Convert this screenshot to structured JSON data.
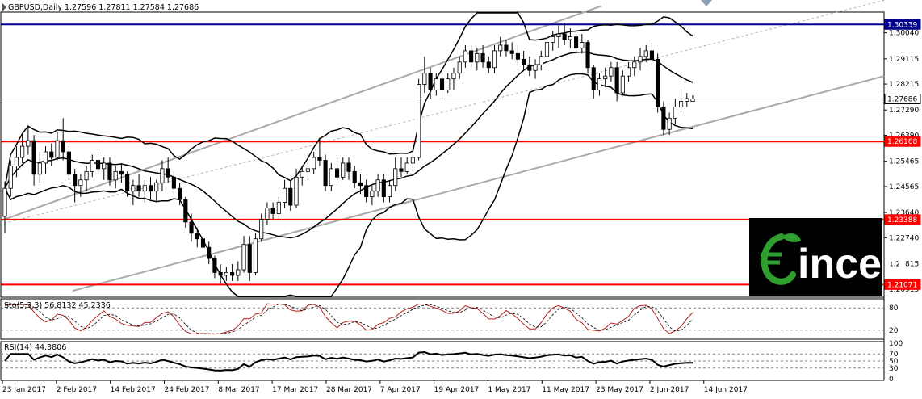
{
  "chart": {
    "symbol_header": "GBPUSD,Daily  1.27596 1.27811 1.27584 1.27686",
    "price_ticks": [
      "1.30040",
      "1.29115",
      "1.28215",
      "1.27290",
      "1.26390",
      "1.25465",
      "1.24565",
      "1.23640",
      "1.22740",
      "1.21815",
      "1.20915"
    ],
    "level_labels": [
      "1.30339",
      "1.27686",
      "1.26168",
      "1.23388",
      "1.21071"
    ],
    "date_ticks": [
      "23 Jan 2017",
      "2 Feb 2017",
      "14 Feb 2017",
      "24 Feb 2017",
      "8 Mar 2017",
      "17 Mar 2017",
      "28 Mar 2017",
      "7 Apr 2017",
      "19 Apr 2017",
      "1 May 2017",
      "11 May 2017",
      "23 May 2017",
      "2 Jun 2017",
      "14 Jun 2017"
    ]
  },
  "colors": {
    "support_resistance": "#ff0000",
    "top_resistance": "#00008b",
    "candle_bull": "#ffffff",
    "candle_bear": "#000000",
    "stoch_main": "#b22222",
    "logo_bg": "#000000",
    "logo_accent": "#2e9e2e"
  },
  "stoch": {
    "label": "Sto(5,3,3) 56.8132 45.2336",
    "levels": [
      "80",
      "20"
    ]
  },
  "rsi": {
    "label": "RSI(14) 44.3806",
    "levels": [
      "100",
      "70",
      "50",
      "30",
      "0"
    ]
  },
  "logo": {
    "text": "incen",
    "icon": "euro-leaf-icon"
  },
  "chart_data": {
    "type": "candlestick",
    "title": "GBPUSD,Daily",
    "ohlc_last": {
      "open": 1.27596,
      "high": 1.27811,
      "low": 1.27584,
      "close": 1.27686
    },
    "horizontal_levels": [
      1.30339,
      1.26168,
      1.23388,
      1.21071
    ],
    "y_range": [
      1.2065,
      1.3075
    ],
    "candles": [
      [
        1.235,
        1.2475,
        1.229,
        1.245
      ],
      [
        1.245,
        1.255,
        1.242,
        1.253
      ],
      [
        1.253,
        1.26,
        1.249,
        1.256
      ],
      [
        1.256,
        1.264,
        1.254,
        1.26
      ],
      [
        1.26,
        1.267,
        1.257,
        1.262
      ],
      [
        1.262,
        1.264,
        1.246,
        1.25
      ],
      [
        1.25,
        1.258,
        1.247,
        1.254
      ],
      [
        1.254,
        1.26,
        1.25,
        1.258
      ],
      [
        1.258,
        1.261,
        1.253,
        1.256
      ],
      [
        1.256,
        1.265,
        1.255,
        1.262
      ],
      [
        1.262,
        1.27,
        1.255,
        1.258
      ],
      [
        1.258,
        1.26,
        1.248,
        1.25
      ],
      [
        1.25,
        1.252,
        1.24,
        1.246
      ],
      [
        1.246,
        1.25,
        1.242,
        1.248
      ],
      [
        1.248,
        1.253,
        1.244,
        1.251
      ],
      [
        1.251,
        1.257,
        1.249,
        1.255
      ],
      [
        1.255,
        1.258,
        1.25,
        1.252
      ],
      [
        1.252,
        1.256,
        1.248,
        1.254
      ],
      [
        1.254,
        1.256,
        1.246,
        1.248
      ],
      [
        1.248,
        1.253,
        1.245,
        1.251
      ],
      [
        1.251,
        1.254,
        1.247,
        1.25
      ],
      [
        1.25,
        1.251,
        1.242,
        1.244
      ],
      [
        1.244,
        1.248,
        1.239,
        1.246
      ],
      [
        1.246,
        1.25,
        1.242,
        1.244
      ],
      [
        1.244,
        1.248,
        1.24,
        1.246
      ],
      [
        1.246,
        1.249,
        1.241,
        1.244
      ],
      [
        1.244,
        1.248,
        1.24,
        1.247
      ],
      [
        1.247,
        1.255,
        1.244,
        1.252
      ],
      [
        1.252,
        1.256,
        1.247,
        1.249
      ],
      [
        1.249,
        1.251,
        1.243,
        1.245
      ],
      [
        1.245,
        1.247,
        1.239,
        1.241
      ],
      [
        1.241,
        1.242,
        1.231,
        1.233
      ],
      [
        1.233,
        1.236,
        1.226,
        1.229
      ],
      [
        1.229,
        1.231,
        1.224,
        1.227
      ],
      [
        1.227,
        1.229,
        1.221,
        1.224
      ],
      [
        1.224,
        1.226,
        1.218,
        1.22
      ],
      [
        1.22,
        1.221,
        1.213,
        1.215
      ],
      [
        1.215,
        1.218,
        1.211,
        1.214
      ],
      [
        1.214,
        1.217,
        1.212,
        1.215
      ],
      [
        1.215,
        1.218,
        1.212,
        1.214
      ],
      [
        1.214,
        1.219,
        1.212,
        1.216
      ],
      [
        1.216,
        1.228,
        1.215,
        1.225
      ],
      [
        1.225,
        1.228,
        1.212,
        1.215
      ],
      [
        1.215,
        1.229,
        1.214,
        1.227
      ],
      [
        1.227,
        1.236,
        1.226,
        1.234
      ],
      [
        1.234,
        1.24,
        1.232,
        1.238
      ],
      [
        1.238,
        1.24,
        1.234,
        1.236
      ],
      [
        1.236,
        1.242,
        1.234,
        1.24
      ],
      [
        1.24,
        1.248,
        1.238,
        1.245
      ],
      [
        1.245,
        1.248,
        1.237,
        1.239
      ],
      [
        1.239,
        1.252,
        1.238,
        1.249
      ],
      [
        1.249,
        1.253,
        1.246,
        1.251
      ],
      [
        1.251,
        1.254,
        1.248,
        1.252
      ],
      [
        1.252,
        1.258,
        1.25,
        1.256
      ],
      [
        1.256,
        1.263,
        1.253,
        1.255
      ],
      [
        1.255,
        1.257,
        1.244,
        1.246
      ],
      [
        1.246,
        1.254,
        1.244,
        1.252
      ],
      [
        1.252,
        1.256,
        1.247,
        1.249
      ],
      [
        1.249,
        1.256,
        1.248,
        1.254
      ],
      [
        1.254,
        1.256,
        1.248,
        1.251
      ],
      [
        1.251,
        1.253,
        1.245,
        1.247
      ],
      [
        1.247,
        1.25,
        1.243,
        1.246
      ],
      [
        1.246,
        1.248,
        1.24,
        1.242
      ],
      [
        1.242,
        1.246,
        1.239,
        1.244
      ],
      [
        1.244,
        1.25,
        1.242,
        1.248
      ],
      [
        1.248,
        1.25,
        1.24,
        1.242
      ],
      [
        1.242,
        1.248,
        1.24,
        1.246
      ],
      [
        1.246,
        1.256,
        1.244,
        1.252
      ],
      [
        1.252,
        1.256,
        1.249,
        1.251
      ],
      [
        1.251,
        1.256,
        1.25,
        1.254
      ],
      [
        1.254,
        1.258,
        1.251,
        1.256
      ],
      [
        1.256,
        1.284,
        1.255,
        1.282
      ],
      [
        1.282,
        1.292,
        1.279,
        1.286
      ],
      [
        1.286,
        1.288,
        1.277,
        1.28
      ],
      [
        1.28,
        1.286,
        1.278,
        1.284
      ],
      [
        1.284,
        1.286,
        1.277,
        1.28
      ],
      [
        1.28,
        1.286,
        1.279,
        1.284
      ],
      [
        1.284,
        1.288,
        1.28,
        1.286
      ],
      [
        1.286,
        1.292,
        1.284,
        1.29
      ],
      [
        1.29,
        1.296,
        1.288,
        1.294
      ],
      [
        1.294,
        1.296,
        1.288,
        1.29
      ],
      [
        1.29,
        1.295,
        1.287,
        1.293
      ],
      [
        1.293,
        1.296,
        1.288,
        1.29
      ],
      [
        1.29,
        1.292,
        1.286,
        1.288
      ],
      [
        1.288,
        1.296,
        1.286,
        1.294
      ],
      [
        1.294,
        1.299,
        1.292,
        1.296
      ],
      [
        1.296,
        1.298,
        1.292,
        1.294
      ],
      [
        1.294,
        1.297,
        1.291,
        1.293
      ],
      [
        1.293,
        1.296,
        1.289,
        1.291
      ],
      [
        1.291,
        1.294,
        1.287,
        1.289
      ],
      [
        1.289,
        1.292,
        1.285,
        1.287
      ],
      [
        1.287,
        1.291,
        1.284,
        1.289
      ],
      [
        1.289,
        1.294,
        1.287,
        1.292
      ],
      [
        1.292,
        1.299,
        1.29,
        1.297
      ],
      [
        1.297,
        1.301,
        1.294,
        1.299
      ],
      [
        1.299,
        1.303,
        1.295,
        1.3
      ],
      [
        1.3,
        1.304,
        1.296,
        1.298
      ],
      [
        1.298,
        1.302,
        1.295,
        1.299
      ],
      [
        1.299,
        1.3,
        1.293,
        1.295
      ],
      [
        1.295,
        1.3,
        1.293,
        1.297
      ],
      [
        1.297,
        1.298,
        1.286,
        1.288
      ],
      [
        1.288,
        1.289,
        1.277,
        1.28
      ],
      [
        1.28,
        1.286,
        1.278,
        1.284
      ],
      [
        1.284,
        1.288,
        1.281,
        1.285
      ],
      [
        1.285,
        1.29,
        1.283,
        1.288
      ],
      [
        1.288,
        1.29,
        1.276,
        1.279
      ],
      [
        1.279,
        1.287,
        1.278,
        1.285
      ],
      [
        1.285,
        1.29,
        1.283,
        1.288
      ],
      [
        1.288,
        1.292,
        1.285,
        1.29
      ],
      [
        1.29,
        1.295,
        1.287,
        1.292
      ],
      [
        1.292,
        1.296,
        1.29,
        1.294
      ],
      [
        1.294,
        1.297,
        1.289,
        1.291
      ],
      [
        1.291,
        1.293,
        1.272,
        1.274
      ],
      [
        1.274,
        1.276,
        1.264,
        1.266
      ],
      [
        1.266,
        1.272,
        1.264,
        1.27
      ],
      [
        1.27,
        1.277,
        1.268,
        1.274
      ],
      [
        1.274,
        1.28,
        1.272,
        1.276
      ],
      [
        1.276,
        1.279,
        1.274,
        1.277
      ],
      [
        1.27596,
        1.27811,
        1.27584,
        1.27686
      ]
    ]
  }
}
